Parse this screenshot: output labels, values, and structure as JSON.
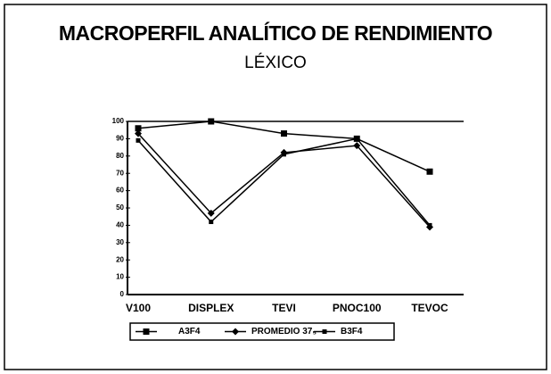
{
  "chart_data": {
    "type": "line",
    "title": "MACROPERFIL ANALÍTICO DE RENDIMIENTO",
    "subtitle": "LÉXICO",
    "categories": [
      "V100",
      "DISPLEX",
      "TEVI",
      "PNOC100",
      "TEVOC"
    ],
    "series": [
      {
        "name": "A3F4",
        "color": "#000000",
        "marker": "square",
        "values": [
          96,
          100,
          93,
          90,
          71
        ]
      },
      {
        "name": "PROMEDIO 37₅",
        "color": "#000000",
        "marker": "diamond",
        "values": [
          93,
          47,
          82,
          86,
          39
        ]
      },
      {
        "name": "B3F4",
        "color": "#000000",
        "marker": "small-square",
        "values": [
          89,
          42,
          81,
          90,
          40
        ]
      }
    ],
    "ylim": [
      0,
      100
    ],
    "yticks": [
      0,
      10,
      20,
      30,
      40,
      50,
      60,
      70,
      80,
      90,
      100
    ],
    "grid": false,
    "legend": "bottom"
  }
}
